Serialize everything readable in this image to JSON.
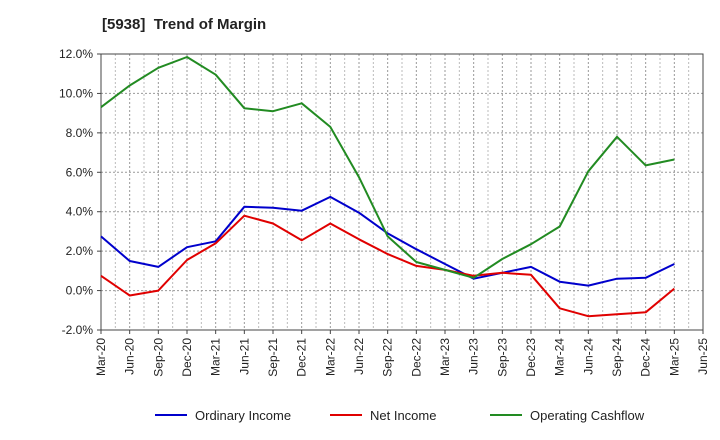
{
  "chart_data": {
    "type": "line",
    "title": "[5938]  Trend of Margin",
    "xlabel": "",
    "ylabel": "",
    "x": [
      "Mar-20",
      "Jun-20",
      "Sep-20",
      "Dec-20",
      "Mar-21",
      "Jun-21",
      "Sep-21",
      "Dec-21",
      "Mar-22",
      "Jun-22",
      "Sep-22",
      "Dec-22",
      "Mar-23",
      "Jun-23",
      "Sep-23",
      "Dec-23",
      "Mar-24",
      "Jun-24",
      "Sep-24",
      "Dec-24",
      "Mar-25",
      "Jun-25"
    ],
    "ylim": [
      -2.0,
      12.0
    ],
    "yticks": [
      -2.0,
      0.0,
      2.0,
      4.0,
      6.0,
      8.0,
      10.0,
      12.0
    ],
    "ytick_labels": [
      "-2.0%",
      "0.0%",
      "2.0%",
      "4.0%",
      "6.0%",
      "8.0%",
      "10.0%",
      "12.0%"
    ],
    "grid": true,
    "legend_position": "bottom",
    "series": [
      {
        "name": "Ordinary Income",
        "color": "#0000cc",
        "values": [
          2.75,
          1.5,
          1.2,
          2.2,
          2.5,
          4.25,
          4.2,
          4.05,
          4.75,
          3.95,
          2.9,
          2.1,
          1.35,
          0.6,
          0.9,
          1.2,
          0.45,
          0.25,
          0.6,
          0.65,
          1.35,
          null
        ]
      },
      {
        "name": "Net Income",
        "color": "#e00000",
        "values": [
          0.75,
          -0.25,
          0.0,
          1.55,
          2.4,
          3.8,
          3.4,
          2.55,
          3.4,
          2.6,
          1.85,
          1.25,
          1.05,
          0.75,
          0.9,
          0.8,
          -0.9,
          -1.3,
          -1.2,
          -1.1,
          0.1,
          null
        ]
      },
      {
        "name": "Operating Cashflow",
        "color": "#228b22",
        "values": [
          9.3,
          10.4,
          11.3,
          11.85,
          10.95,
          9.25,
          9.1,
          9.5,
          8.3,
          5.75,
          2.75,
          1.45,
          1.05,
          0.65,
          1.6,
          2.35,
          3.25,
          6.05,
          7.8,
          6.35,
          6.65,
          null
        ]
      }
    ]
  }
}
